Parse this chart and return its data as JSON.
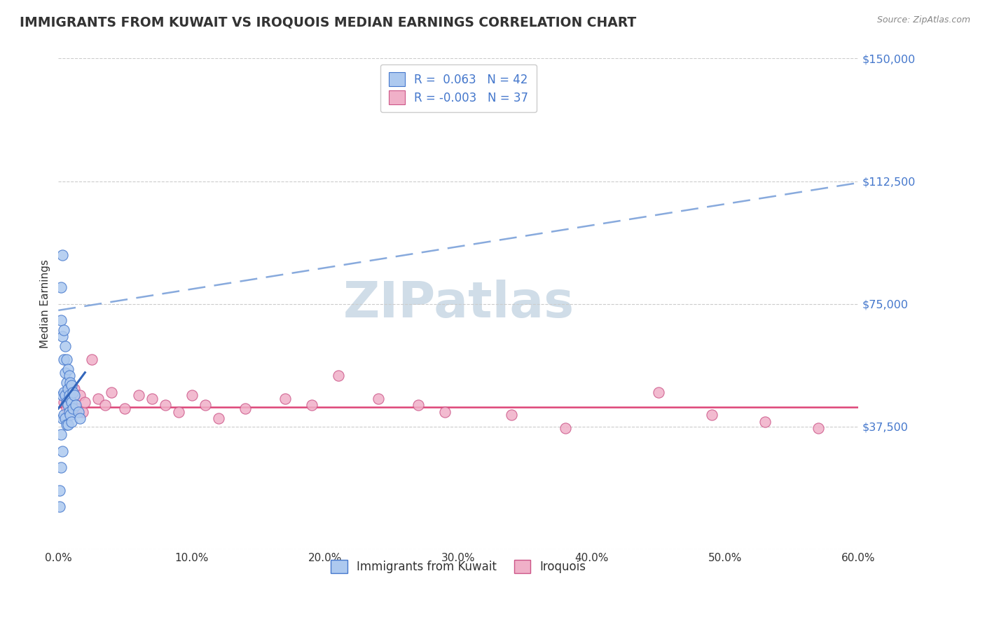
{
  "title": "IMMIGRANTS FROM KUWAIT VS IROQUOIS MEDIAN EARNINGS CORRELATION CHART",
  "source_text": "Source: ZipAtlas.com",
  "ylabel": "Median Earnings",
  "xlim": [
    0.0,
    0.6
  ],
  "ylim": [
    0,
    150000
  ],
  "yticks": [
    0,
    37500,
    75000,
    112500,
    150000
  ],
  "ytick_labels": [
    "",
    "$37,500",
    "$75,000",
    "$112,500",
    "$150,000"
  ],
  "xtick_labels": [
    "0.0%",
    "10.0%",
    "20.0%",
    "30.0%",
    "40.0%",
    "50.0%",
    "60.0%"
  ],
  "xticks": [
    0.0,
    0.1,
    0.2,
    0.3,
    0.4,
    0.5,
    0.6
  ],
  "blue_R": 0.063,
  "blue_N": 42,
  "pink_R": -0.003,
  "pink_N": 37,
  "blue_color": "#adc9ef",
  "pink_color": "#f0b0c8",
  "blue_edge_color": "#4477cc",
  "pink_edge_color": "#cc5588",
  "trend_blue_dashed_color": "#88aadd",
  "trend_blue_solid_color": "#3366bb",
  "trend_pink_color": "#dd4477",
  "blue_scatter_x": [
    0.001,
    0.001,
    0.002,
    0.002,
    0.002,
    0.003,
    0.003,
    0.003,
    0.003,
    0.004,
    0.004,
    0.004,
    0.004,
    0.005,
    0.005,
    0.005,
    0.005,
    0.006,
    0.006,
    0.006,
    0.006,
    0.007,
    0.007,
    0.007,
    0.007,
    0.008,
    0.008,
    0.008,
    0.009,
    0.009,
    0.009,
    0.01,
    0.01,
    0.01,
    0.011,
    0.011,
    0.012,
    0.013,
    0.015,
    0.016,
    0.002,
    0.003
  ],
  "blue_scatter_y": [
    18000,
    13000,
    80000,
    70000,
    25000,
    90000,
    65000,
    47000,
    40000,
    67000,
    58000,
    48000,
    41000,
    62000,
    54000,
    47000,
    40000,
    58000,
    51000,
    45000,
    38000,
    55000,
    49000,
    44000,
    38000,
    53000,
    47000,
    42000,
    51000,
    46000,
    41000,
    50000,
    45000,
    39000,
    48000,
    43000,
    47000,
    44000,
    42000,
    40000,
    35000,
    30000
  ],
  "pink_scatter_x": [
    0.004,
    0.005,
    0.006,
    0.007,
    0.008,
    0.009,
    0.01,
    0.012,
    0.014,
    0.016,
    0.018,
    0.02,
    0.025,
    0.03,
    0.035,
    0.04,
    0.05,
    0.06,
    0.07,
    0.08,
    0.09,
    0.1,
    0.11,
    0.12,
    0.14,
    0.17,
    0.19,
    0.21,
    0.24,
    0.27,
    0.29,
    0.34,
    0.38,
    0.45,
    0.49,
    0.53,
    0.57
  ],
  "pink_scatter_y": [
    45000,
    47000,
    43000,
    48000,
    42000,
    46000,
    44000,
    49000,
    43000,
    47000,
    42000,
    45000,
    58000,
    46000,
    44000,
    48000,
    43000,
    47000,
    46000,
    44000,
    42000,
    47000,
    44000,
    40000,
    43000,
    46000,
    44000,
    53000,
    46000,
    44000,
    42000,
    41000,
    37000,
    48000,
    41000,
    39000,
    37000
  ],
  "blue_solid_trend_x": [
    0.0,
    0.02
  ],
  "blue_solid_trend_y": [
    43000,
    54000
  ],
  "blue_dashed_trend_x": [
    0.0,
    0.6
  ],
  "blue_dashed_trend_y": [
    73000,
    112000
  ],
  "pink_flat_trend_y": 43500,
  "watermark": "ZIPatlas",
  "watermark_color": "#d0dde8",
  "legend_label_blue": "Immigrants from Kuwait",
  "legend_label_pink": "Iroquois",
  "background_color": "#ffffff",
  "grid_color": "#cccccc",
  "title_color": "#333333",
  "axis_label_color": "#4477cc",
  "tick_color": "#333333"
}
